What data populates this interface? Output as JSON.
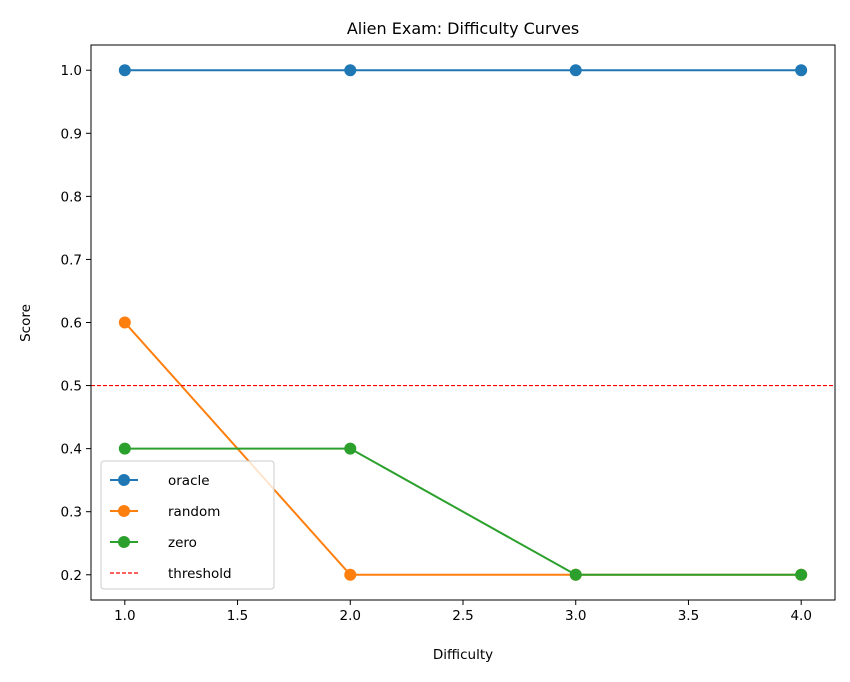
{
  "chart_data": {
    "type": "line",
    "title": "Alien Exam: Difficulty Curves",
    "xlabel": "Difficulty",
    "ylabel": "Score",
    "x": [
      1.0,
      2.0,
      3.0,
      4.0
    ],
    "xlim": [
      0.85,
      4.15
    ],
    "ylim": [
      0.16,
      1.04
    ],
    "xticks": [
      1.0,
      1.5,
      2.0,
      2.5,
      3.0,
      3.5,
      4.0
    ],
    "xtick_labels": [
      "1.0",
      "1.5",
      "2.0",
      "2.5",
      "3.0",
      "3.5",
      "4.0"
    ],
    "yticks": [
      0.2,
      0.3,
      0.4,
      0.5,
      0.6,
      0.7,
      0.8,
      0.9,
      1.0
    ],
    "ytick_labels": [
      "0.2",
      "0.3",
      "0.4",
      "0.5",
      "0.6",
      "0.7",
      "0.8",
      "0.9",
      "1.0"
    ],
    "grid": false,
    "legend_position": "lower-left",
    "series": [
      {
        "name": "oracle",
        "values": [
          1.0,
          1.0,
          1.0,
          1.0
        ],
        "color": "#1f77b4",
        "marker": "circle"
      },
      {
        "name": "random",
        "values": [
          0.6,
          0.2,
          0.2,
          0.2
        ],
        "color": "#ff7f0e",
        "marker": "circle"
      },
      {
        "name": "zero",
        "values": [
          0.4,
          0.4,
          0.2,
          0.2
        ],
        "color": "#2ca02c",
        "marker": "circle"
      }
    ],
    "hlines": [
      {
        "name": "threshold",
        "y": 0.5,
        "color": "#ff0000",
        "style": "dashed"
      }
    ]
  }
}
